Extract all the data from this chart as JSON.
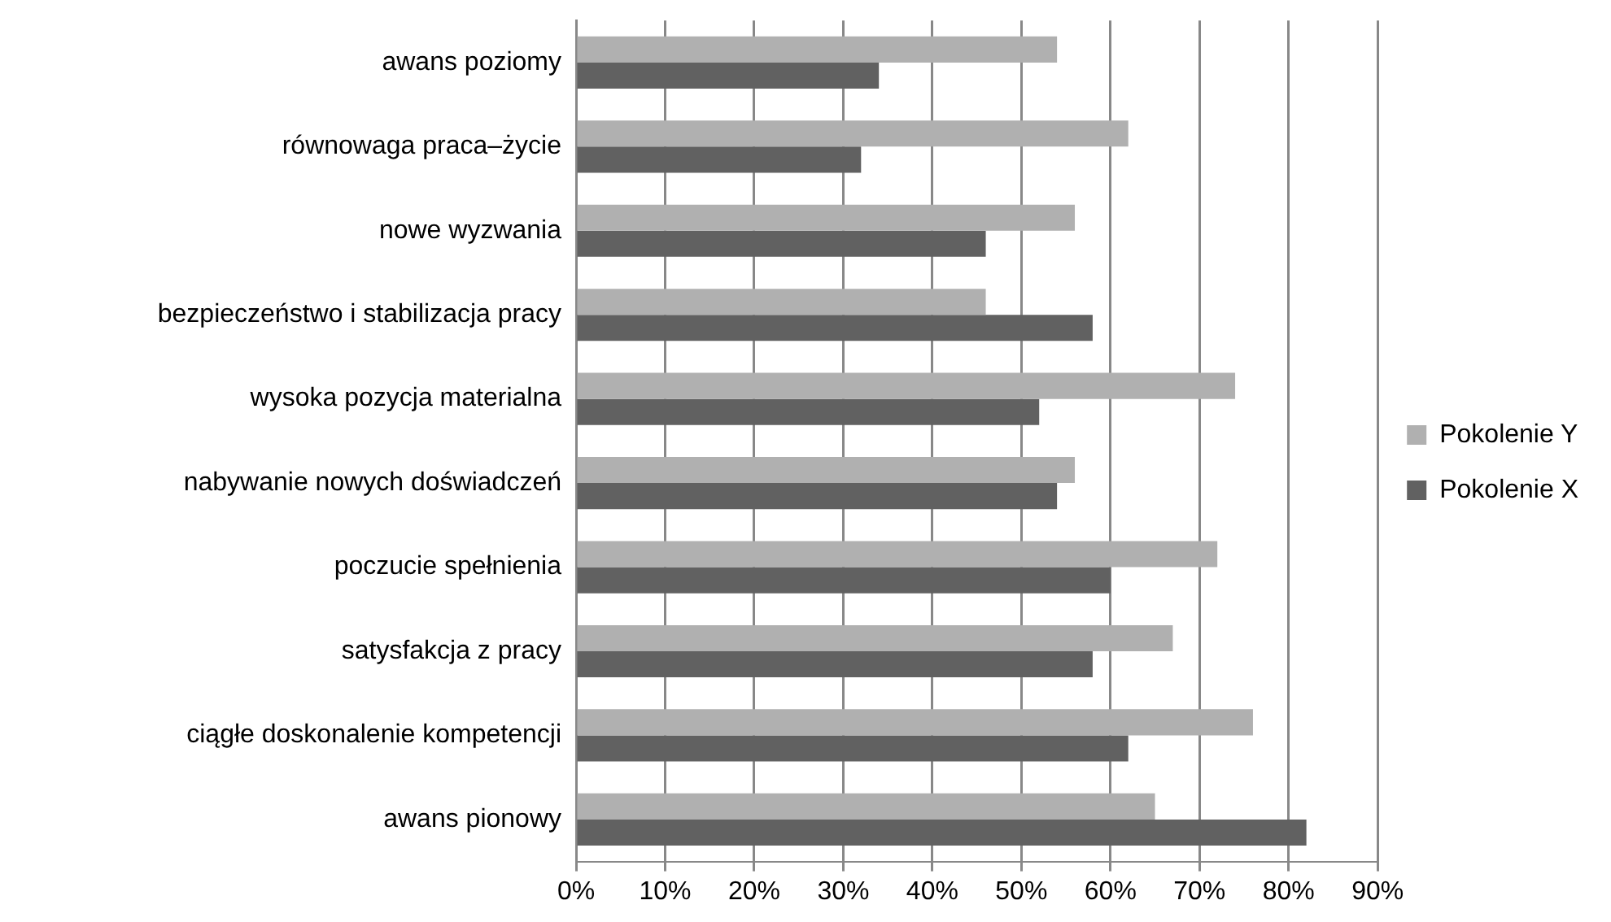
{
  "chart_data": {
    "type": "bar",
    "orientation": "horizontal",
    "categories": [
      "awans poziomy",
      "równowaga praca–życie",
      "nowe wyzwania",
      "bezpieczeństwo i stabilizacja pracy",
      "wysoka pozycja materialna",
      "nabywanie nowych doświadczeń",
      "poczucie spełnienia",
      "satysfakcja z pracy",
      "ciągłe doskonalenie kompetencji",
      "awans pionowy"
    ],
    "series": [
      {
        "name": "Pokolenie Y",
        "color": "#b0b0b0",
        "values": [
          54,
          62,
          56,
          46,
          74,
          56,
          72,
          67,
          76,
          65
        ]
      },
      {
        "name": "Pokolenie X",
        "color": "#616161",
        "values": [
          34,
          32,
          46,
          58,
          52,
          54,
          60,
          58,
          62,
          82
        ]
      }
    ],
    "xlim": [
      0,
      90
    ],
    "xticks": [
      {
        "value": 0,
        "label": "0%"
      },
      {
        "value": 10,
        "label": "10%"
      },
      {
        "value": 20,
        "label": "20%"
      },
      {
        "value": 30,
        "label": "30%"
      },
      {
        "value": 40,
        "label": "40%"
      },
      {
        "value": 50,
        "label": "50%"
      },
      {
        "value": 60,
        "label": "60%"
      },
      {
        "value": 70,
        "label": "70%"
      },
      {
        "value": 80,
        "label": "80%"
      },
      {
        "value": 90,
        "label": "90%"
      }
    ],
    "grid": "x",
    "legend": "right"
  }
}
